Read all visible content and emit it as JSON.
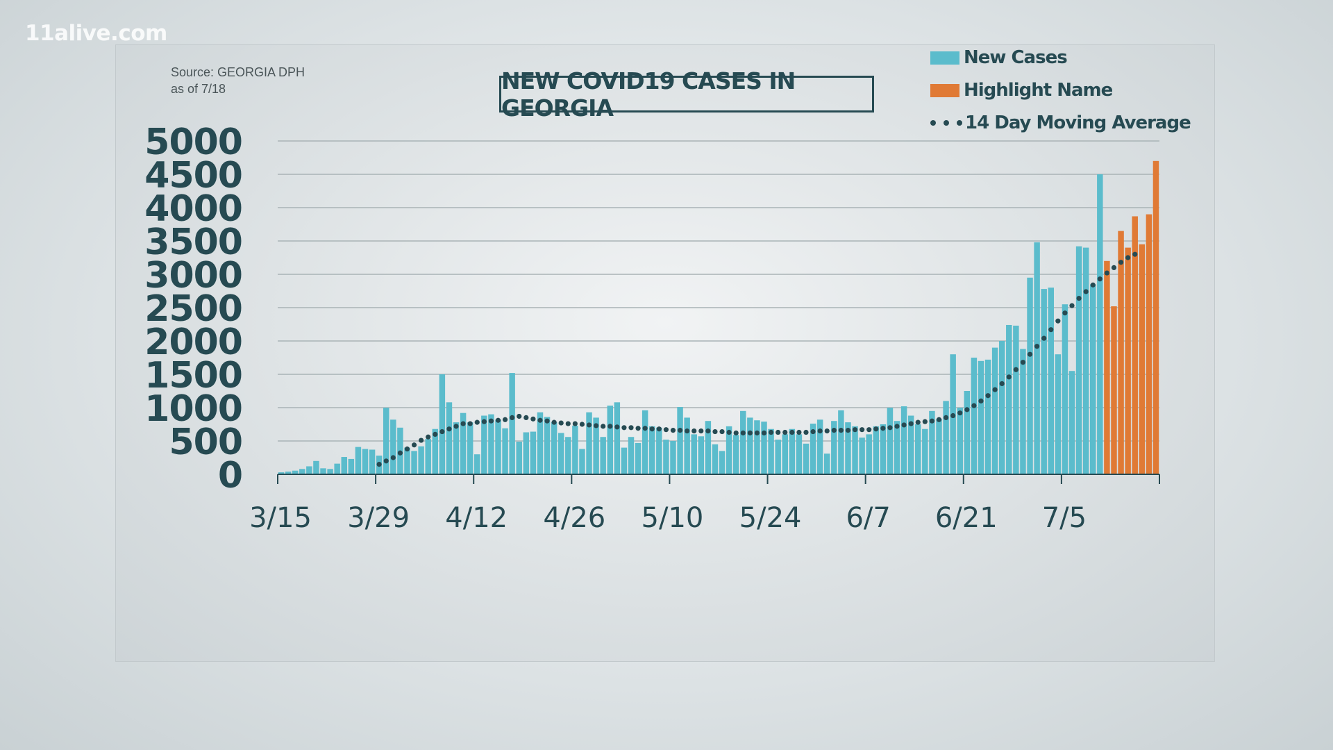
{
  "watermark": "11alive.com",
  "source_line1": "Source: GEORGIA DPH",
  "source_line2": "as of 7/18",
  "colors": {
    "new_cases": "#5bbccc",
    "highlight": "#e07a35",
    "average": "#264a52",
    "text": "#264a52"
  },
  "chart_data": {
    "type": "bar",
    "title": "NEW COVID19 CASES IN GEORGIA",
    "legend": [
      "New Cases",
      "Highlight Name",
      "14 Day Moving Average"
    ],
    "legend_position": "top-right",
    "ylim": [
      0,
      5000
    ],
    "yticks": [
      "0",
      "500",
      "1000",
      "1500",
      "2000",
      "2500",
      "3000",
      "3500",
      "4000",
      "4500",
      "5000"
    ],
    "xticks": [
      "3/15",
      "3/29",
      "4/12",
      "4/26",
      "5/10",
      "5/24",
      "6/7",
      "6/21",
      "7/5"
    ],
    "grid": true,
    "start_label": "3/15",
    "highlight_last_n": 8,
    "series": [
      {
        "name": "New Cases",
        "values": [
          30,
          40,
          55,
          80,
          120,
          200,
          90,
          80,
          160,
          260,
          230,
          410,
          380,
          370,
          280,
          1000,
          820,
          700,
          400,
          350,
          420,
          530,
          680,
          1500,
          1080,
          780,
          920,
          780,
          300,
          880,
          900,
          820,
          690,
          1520,
          490,
          630,
          640,
          930,
          860,
          780,
          620,
          560,
          730,
          380,
          930,
          850,
          560,
          1030,
          1080,
          400,
          560,
          470,
          960,
          720,
          700,
          520,
          500,
          1010,
          850,
          600,
          570,
          800,
          450,
          350,
          720,
          590,
          950,
          850,
          810,
          790,
          680,
          520,
          600,
          680,
          600,
          460,
          760,
          820,
          310,
          800,
          960,
          780,
          720,
          550,
          600,
          720,
          750,
          1000,
          800,
          1020,
          880,
          750,
          680,
          950,
          830,
          1100,
          1800,
          1000,
          1250,
          1750,
          1700,
          1720,
          1900,
          2000,
          2240,
          2230,
          1880,
          2950,
          3480,
          2780,
          2800,
          1800,
          2550,
          1550,
          3420,
          3400,
          2850,
          4500,
          3200,
          2520,
          3650,
          3400,
          3870,
          3450,
          3900,
          4700
        ]
      },
      {
        "name": "14 Day Moving Average",
        "values": [
          null,
          null,
          null,
          null,
          null,
          null,
          null,
          null,
          null,
          null,
          null,
          null,
          null,
          null,
          150,
          200,
          250,
          320,
          380,
          440,
          510,
          560,
          600,
          640,
          680,
          720,
          760,
          760,
          780,
          790,
          800,
          810,
          820,
          850,
          870,
          850,
          830,
          810,
          800,
          780,
          770,
          760,
          760,
          750,
          740,
          730,
          720,
          720,
          710,
          700,
          700,
          690,
          690,
          680,
          680,
          670,
          660,
          660,
          650,
          650,
          650,
          650,
          640,
          640,
          630,
          620,
          620,
          620,
          620,
          620,
          630,
          630,
          630,
          630,
          630,
          630,
          640,
          650,
          650,
          660,
          660,
          660,
          670,
          670,
          670,
          680,
          690,
          700,
          720,
          740,
          760,
          780,
          790,
          800,
          820,
          850,
          880,
          920,
          970,
          1030,
          1100,
          1180,
          1270,
          1360,
          1460,
          1570,
          1680,
          1800,
          1920,
          2040,
          2170,
          2300,
          2420,
          2530,
          2640,
          2740,
          2840,
          2930,
          3020,
          3100,
          3180,
          3250,
          3300
        ]
      }
    ]
  }
}
